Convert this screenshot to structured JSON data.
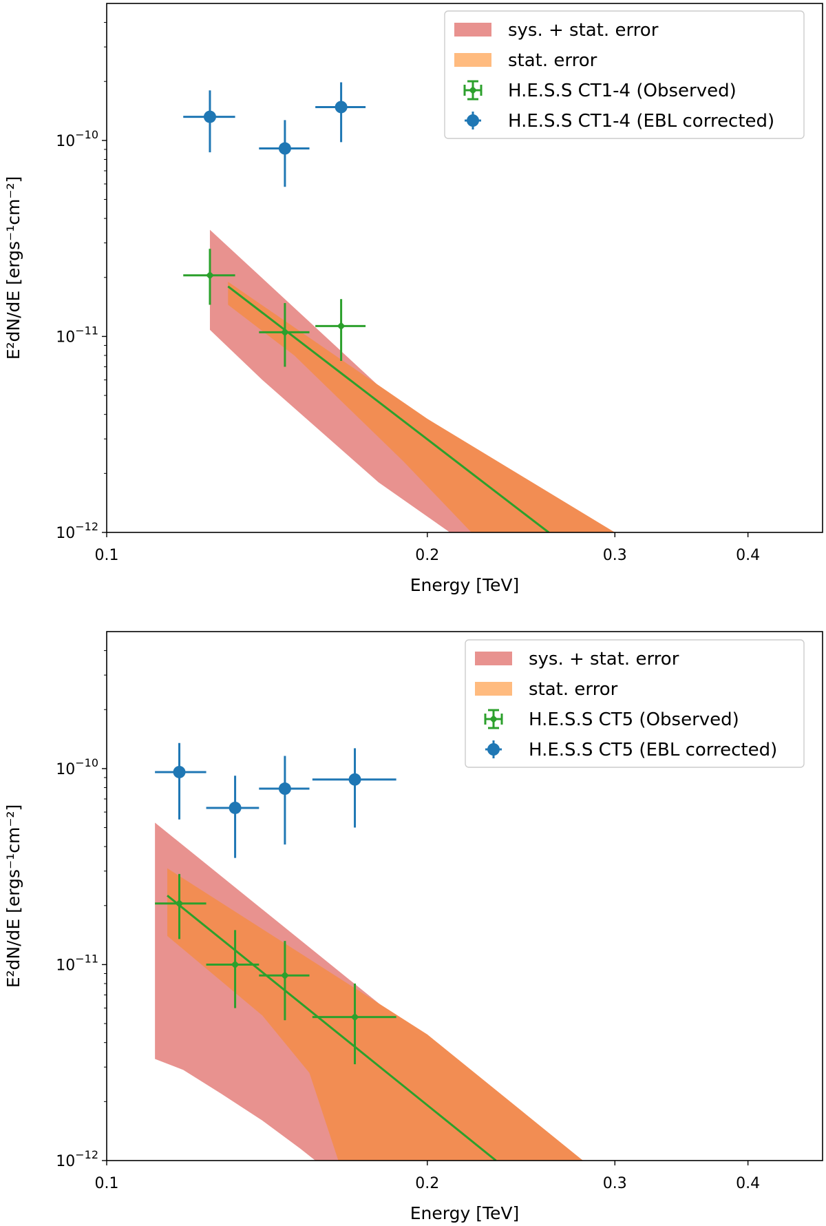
{
  "chart_data": [
    {
      "type": "scatter",
      "title": "",
      "xlabel": "Energy [TeV]",
      "ylabel": "E²dN/dE [ergs⁻¹cm⁻²]",
      "xscale": "log",
      "yscale": "log",
      "xlim": [
        0.1,
        0.47
      ],
      "ylim": [
        1e-12,
        5e-10
      ],
      "xticks": [
        0.1,
        0.2,
        0.3,
        0.4
      ],
      "xtick_labels": [
        "0.1",
        "0.2",
        "0.3",
        "0.4"
      ],
      "yticks": [
        1e-12,
        1e-11,
        1e-10
      ],
      "ytick_labels": [
        [
          "10",
          "−12"
        ],
        [
          "10",
          "−11"
        ],
        [
          "10",
          "−10"
        ]
      ],
      "legend_position": "top-right",
      "legend": [
        {
          "label": "sys. + stat. error",
          "kind": "band",
          "color": "#e8928f"
        },
        {
          "label": "stat. error",
          "kind": "band",
          "color": "#ffbb7f"
        },
        {
          "label": "H.E.S.S CT1-4 (Observed)",
          "kind": "errorbar-square",
          "color": "#2ca02c"
        },
        {
          "label": "H.E.S.S CT1-4 (EBL corrected)",
          "kind": "errorbar-circle",
          "color": "#1f77b4"
        }
      ],
      "bands": [
        {
          "name": "sys. + stat. error",
          "color": "#e8928f",
          "upper": [
            [
              0.125,
              3.5e-11
            ],
            [
              0.2,
              3.3e-12
            ],
            [
              0.3,
              1e-12
            ]
          ],
          "lower": [
            [
              0.125,
              1.08e-11
            ],
            [
              0.14,
              6e-12
            ],
            [
              0.18,
              1.8e-12
            ],
            [
              0.21,
              1e-12
            ]
          ]
        },
        {
          "name": "stat. error",
          "color": "#f28d53",
          "upper": [
            [
              0.13,
              1.9e-11
            ],
            [
              0.2,
              3.8e-12
            ],
            [
              0.3,
              1e-12
            ]
          ],
          "lower": [
            [
              0.13,
              1.45e-11
            ],
            [
              0.15,
              8e-12
            ],
            [
              0.19,
              2.3e-12
            ],
            [
              0.22,
              1e-12
            ]
          ]
        }
      ],
      "fit_line": {
        "name": "power-law fit",
        "color": "#2ca02c",
        "points": [
          [
            0.13,
            1.8e-11
          ],
          [
            0.26,
            1e-12
          ]
        ]
      },
      "series": [
        {
          "name": "H.E.S.S CT1-4 (Observed)",
          "marker": "diamond",
          "color": "#2ca02c",
          "points": [
            {
              "x": 0.125,
              "y": 2.05e-11,
              "xlo": 0.118,
              "xhi": 0.132,
              "ylo": 1.45e-11,
              "yhi": 2.8e-11
            },
            {
              "x": 0.147,
              "y": 1.05e-11,
              "xlo": 0.139,
              "xhi": 0.155,
              "ylo": 7e-12,
              "yhi": 1.48e-11
            },
            {
              "x": 0.166,
              "y": 1.13e-11,
              "xlo": 0.157,
              "xhi": 0.175,
              "ylo": 7.5e-12,
              "yhi": 1.55e-11
            }
          ]
        },
        {
          "name": "H.E.S.S CT1-4 (EBL corrected)",
          "marker": "circle",
          "color": "#1f77b4",
          "points": [
            {
              "x": 0.125,
              "y": 1.32e-10,
              "xlo": 0.118,
              "xhi": 0.132,
              "ylo": 8.7e-11,
              "yhi": 1.8e-10
            },
            {
              "x": 0.147,
              "y": 9.1e-11,
              "xlo": 0.139,
              "xhi": 0.155,
              "ylo": 5.8e-11,
              "yhi": 1.27e-10
            },
            {
              "x": 0.166,
              "y": 1.48e-10,
              "xlo": 0.157,
              "xhi": 0.175,
              "ylo": 9.8e-11,
              "yhi": 1.98e-10
            }
          ]
        }
      ]
    },
    {
      "type": "scatter",
      "title": "",
      "xlabel": "Energy [TeV]",
      "ylabel": "E²dN/dE [ergs⁻¹cm⁻²]",
      "xscale": "log",
      "yscale": "log",
      "xlim": [
        0.1,
        0.47
      ],
      "ylim": [
        1e-12,
        5e-10
      ],
      "xticks": [
        0.1,
        0.2,
        0.3,
        0.4
      ],
      "xtick_labels": [
        "0.1",
        "0.2",
        "0.3",
        "0.4"
      ],
      "yticks": [
        1e-12,
        1e-11,
        1e-10
      ],
      "ytick_labels": [
        [
          "10",
          "−12"
        ],
        [
          "10",
          "−11"
        ],
        [
          "10",
          "−10"
        ]
      ],
      "legend_position": "top-right",
      "legend": [
        {
          "label": "sys. + stat. error",
          "kind": "band",
          "color": "#e8928f"
        },
        {
          "label": "stat. error",
          "kind": "band",
          "color": "#ffbb7f"
        },
        {
          "label": "H.E.S.S CT5 (Observed)",
          "kind": "errorbar-square",
          "color": "#2ca02c"
        },
        {
          "label": "H.E.S.S CT5 (EBL corrected)",
          "kind": "errorbar-circle",
          "color": "#1f77b4"
        }
      ],
      "bands": [
        {
          "name": "sys. + stat. error",
          "color": "#e8928f",
          "upper": [
            [
              0.111,
              5.3e-11
            ],
            [
              0.2,
              4e-12
            ],
            [
              0.28,
              1e-12
            ]
          ],
          "lower": [
            [
              0.111,
              3.3e-12
            ],
            [
              0.118,
              2.9e-12
            ],
            [
              0.128,
              2.2e-12
            ],
            [
              0.14,
              1.6e-12
            ],
            [
              0.152,
              1.15e-12
            ],
            [
              0.157,
              1e-12
            ]
          ]
        },
        {
          "name": "stat. error",
          "color": "#f28d53",
          "upper": [
            [
              0.114,
              3.1e-11
            ],
            [
              0.2,
              4.4e-12
            ],
            [
              0.28,
              1e-12
            ]
          ],
          "lower": [
            [
              0.114,
              1.4e-11
            ],
            [
              0.14,
              5.5e-12
            ],
            [
              0.155,
              2.8e-12
            ],
            [
              0.165,
              1e-12
            ]
          ]
        }
      ],
      "fit_line": {
        "name": "power-law fit",
        "color": "#2ca02c",
        "points": [
          [
            0.114,
            2.25e-11
          ],
          [
            0.232,
            1e-12
          ]
        ]
      },
      "series": [
        {
          "name": "H.E.S.S CT5 (Observed)",
          "marker": "diamond",
          "color": "#2ca02c",
          "points": [
            {
              "x": 0.117,
              "y": 2.05e-11,
              "xlo": 0.111,
              "xhi": 0.124,
              "ylo": 1.35e-11,
              "yhi": 2.9e-11
            },
            {
              "x": 0.132,
              "y": 1e-11,
              "xlo": 0.124,
              "xhi": 0.139,
              "ylo": 6e-12,
              "yhi": 1.5e-11
            },
            {
              "x": 0.147,
              "y": 8.8e-12,
              "xlo": 0.139,
              "xhi": 0.155,
              "ylo": 5.2e-12,
              "yhi": 1.32e-11
            },
            {
              "x": 0.171,
              "y": 5.4e-12,
              "xlo": 0.156,
              "xhi": 0.187,
              "ylo": 3.1e-12,
              "yhi": 8e-12
            }
          ]
        },
        {
          "name": "H.E.S.S CT5 (EBL corrected)",
          "marker": "circle",
          "color": "#1f77b4",
          "points": [
            {
              "x": 0.117,
              "y": 9.6e-11,
              "xlo": 0.111,
              "xhi": 0.124,
              "ylo": 5.5e-11,
              "yhi": 1.35e-10
            },
            {
              "x": 0.132,
              "y": 6.3e-11,
              "xlo": 0.124,
              "xhi": 0.139,
              "ylo": 3.5e-11,
              "yhi": 9.2e-11
            },
            {
              "x": 0.147,
              "y": 7.9e-11,
              "xlo": 0.139,
              "xhi": 0.155,
              "ylo": 4.1e-11,
              "yhi": 1.16e-10
            },
            {
              "x": 0.171,
              "y": 8.8e-11,
              "xlo": 0.156,
              "xhi": 0.187,
              "ylo": 5e-11,
              "yhi": 1.27e-10
            }
          ]
        }
      ]
    }
  ]
}
